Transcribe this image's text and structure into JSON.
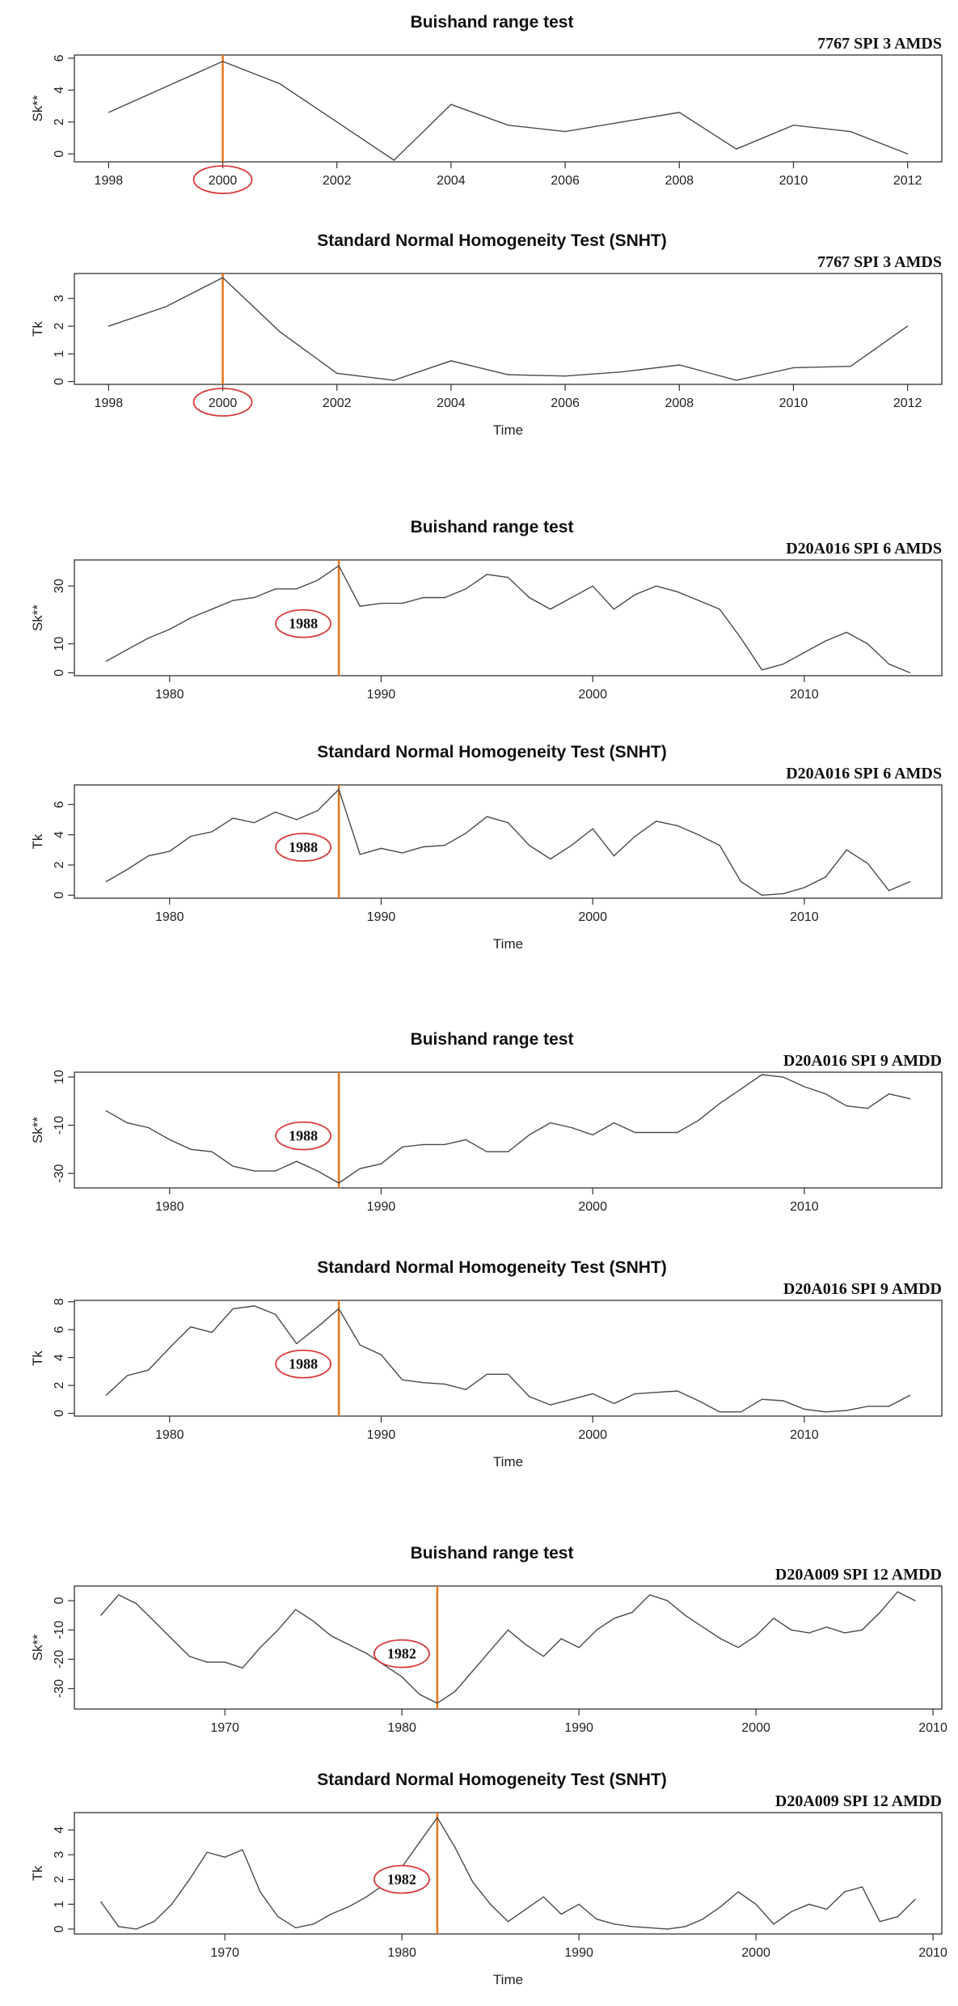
{
  "chart_data": [
    {
      "type": "line",
      "title": "Buishand range test",
      "subtitle": "7767 SPI 3 AMDS",
      "xlabel": "",
      "ylabel": "Sk**",
      "xlim": [
        1997.4,
        2012.6
      ],
      "ylim": [
        -0.5,
        6.2
      ],
      "xticks": [
        1998,
        2000,
        2002,
        2004,
        2006,
        2008,
        2010,
        2012
      ],
      "yticks": [
        0,
        2,
        4,
        6
      ],
      "x": [
        1998,
        1999,
        2000,
        2001,
        2002,
        2003,
        2004,
        2005,
        2006,
        2007,
        2008,
        2009,
        2010,
        2011,
        2012
      ],
      "values": [
        2.6,
        4.2,
        5.8,
        4.4,
        2.0,
        -0.4,
        3.1,
        1.8,
        1.4,
        2.0,
        2.6,
        0.3,
        1.8,
        1.4,
        0.0
      ],
      "change_point": 2000,
      "annotation": "2000",
      "annotation_style": "tick-circle"
    },
    {
      "type": "line",
      "title": "Standard Normal Homogeneity Test (SNHT)",
      "subtitle": "7767 SPI 3 AMDS",
      "xlabel": "Time",
      "ylabel": "Tk",
      "xlim": [
        1997.4,
        2012.6
      ],
      "ylim": [
        -0.1,
        3.9
      ],
      "xticks": [
        1998,
        2000,
        2002,
        2004,
        2006,
        2008,
        2010,
        2012
      ],
      "yticks": [
        0,
        1,
        2,
        3
      ],
      "x": [
        1998,
        1999,
        2000,
        2001,
        2002,
        2003,
        2004,
        2005,
        2006,
        2007,
        2008,
        2009,
        2010,
        2011,
        2012
      ],
      "values": [
        2.0,
        2.7,
        3.75,
        1.8,
        0.3,
        0.05,
        0.75,
        0.25,
        0.2,
        0.35,
        0.6,
        0.05,
        0.5,
        0.55,
        2.0
      ],
      "change_point": 2000,
      "annotation": "2000",
      "annotation_style": "tick-circle"
    },
    {
      "type": "line",
      "title": "Buishand range test",
      "subtitle": "D20A016 SPI 6 AMDS",
      "xlabel": "",
      "ylabel": "Sk**",
      "xlim": [
        1975.5,
        2016.5
      ],
      "ylim": [
        -1,
        39
      ],
      "xticks": [
        1980,
        1990,
        2000,
        2010
      ],
      "yticks": [
        0,
        10,
        30
      ],
      "x": [
        1977,
        1978,
        1979,
        1980,
        1981,
        1982,
        1983,
        1984,
        1985,
        1986,
        1987,
        1988,
        1989,
        1990,
        1991,
        1992,
        1993,
        1994,
        1995,
        1996,
        1997,
        1998,
        1999,
        2000,
        2001,
        2002,
        2003,
        2004,
        2005,
        2006,
        2007,
        2008,
        2009,
        2010,
        2011,
        2012,
        2013,
        2014,
        2015
      ],
      "values": [
        4,
        8,
        12,
        15,
        19,
        22,
        25,
        26,
        29,
        29,
        32,
        37,
        23,
        24,
        24,
        26,
        26,
        29,
        34,
        33,
        26,
        22,
        26,
        30,
        22,
        27,
        30,
        28,
        25,
        22,
        12,
        1,
        3,
        7,
        11,
        14,
        10,
        3,
        0
      ],
      "change_point": 1988,
      "annotation": "1988",
      "annotation_style": "inplot-circle"
    },
    {
      "type": "line",
      "title": "Standard Normal Homogeneity Test (SNHT)",
      "subtitle": "D20A016 SPI 6 AMDS",
      "xlabel": "Time",
      "ylabel": "Tk",
      "xlim": [
        1975.5,
        2016.5
      ],
      "ylim": [
        -0.2,
        7.3
      ],
      "xticks": [
        1980,
        1990,
        2000,
        2010
      ],
      "yticks": [
        0,
        2,
        4,
        6
      ],
      "x": [
        1977,
        1978,
        1979,
        1980,
        1981,
        1982,
        1983,
        1984,
        1985,
        1986,
        1987,
        1988,
        1989,
        1990,
        1991,
        1992,
        1993,
        1994,
        1995,
        1996,
        1997,
        1998,
        1999,
        2000,
        2001,
        2002,
        2003,
        2004,
        2005,
        2006,
        2007,
        2008,
        2009,
        2010,
        2011,
        2012,
        2013,
        2014,
        2015
      ],
      "values": [
        0.9,
        1.7,
        2.6,
        2.9,
        3.9,
        4.2,
        5.1,
        4.8,
        5.5,
        5.0,
        5.6,
        7.0,
        2.7,
        3.1,
        2.8,
        3.2,
        3.3,
        4.1,
        5.2,
        4.8,
        3.3,
        2.4,
        3.3,
        4.4,
        2.6,
        3.9,
        4.9,
        4.6,
        4.0,
        3.3,
        0.9,
        0.0,
        0.1,
        0.5,
        1.2,
        3.0,
        2.1,
        0.3,
        0.9
      ],
      "change_point": 1988,
      "annotation": "1988",
      "annotation_style": "inplot-circle"
    },
    {
      "type": "line",
      "title": "Buishand range test",
      "subtitle": "D20A016 SPI 9 AMDD",
      "xlabel": "",
      "ylabel": "Sk**",
      "xlim": [
        1975.5,
        2016.5
      ],
      "ylim": [
        -36,
        12
      ],
      "xticks": [
        1980,
        1990,
        2000,
        2010
      ],
      "yticks": [
        -30,
        -10,
        10
      ],
      "x": [
        1977,
        1978,
        1979,
        1980,
        1981,
        1982,
        1983,
        1984,
        1985,
        1986,
        1987,
        1988,
        1989,
        1990,
        1991,
        1992,
        1993,
        1994,
        1995,
        1996,
        1997,
        1998,
        1999,
        2000,
        2001,
        2002,
        2003,
        2004,
        2005,
        2006,
        2007,
        2008,
        2009,
        2010,
        2011,
        2012,
        2013,
        2014,
        2015
      ],
      "values": [
        -4,
        -9,
        -11,
        -16,
        -20,
        -21,
        -27,
        -29,
        -29,
        -25,
        -29,
        -34,
        -28,
        -26,
        -19,
        -18,
        -18,
        -16,
        -21,
        -21,
        -14,
        -9,
        -11,
        -14,
        -9,
        -13,
        -13,
        -13,
        -8,
        -1,
        5,
        11,
        10,
        6,
        3,
        -2,
        -3,
        3,
        1
      ],
      "change_point": 1988,
      "annotation": "1988",
      "annotation_style": "inplot-circle"
    },
    {
      "type": "line",
      "title": "Standard Normal Homogeneity Test (SNHT)",
      "subtitle": "D20A016 SPI 9 AMDD",
      "xlabel": "Time",
      "ylabel": "Tk",
      "xlim": [
        1975.5,
        2016.5
      ],
      "ylim": [
        -0.2,
        8.1
      ],
      "xticks": [
        1980,
        1990,
        2000,
        2010
      ],
      "yticks": [
        0,
        2,
        4,
        6,
        8
      ],
      "x": [
        1977,
        1978,
        1979,
        1980,
        1981,
        1982,
        1983,
        1984,
        1985,
        1986,
        1987,
        1988,
        1989,
        1990,
        1991,
        1992,
        1993,
        1994,
        1995,
        1996,
        1997,
        1998,
        1999,
        2000,
        2001,
        2002,
        2003,
        2004,
        2005,
        2006,
        2007,
        2008,
        2009,
        2010,
        2011,
        2012,
        2013,
        2014,
        2015
      ],
      "values": [
        1.3,
        2.7,
        3.1,
        4.7,
        6.2,
        5.8,
        7.5,
        7.7,
        7.1,
        5.0,
        6.2,
        7.5,
        4.9,
        4.2,
        2.4,
        2.2,
        2.1,
        1.7,
        2.8,
        2.8,
        1.2,
        0.6,
        1.0,
        1.4,
        0.7,
        1.4,
        1.5,
        1.6,
        0.9,
        0.1,
        0.1,
        1.0,
        0.9,
        0.3,
        0.1,
        0.2,
        0.5,
        0.5,
        1.3
      ],
      "change_point": 1988,
      "annotation": "1988",
      "annotation_style": "inplot-circle"
    },
    {
      "type": "line",
      "title": "Buishand range test",
      "subtitle": "D20A009 SPI 12 AMDD",
      "xlabel": "",
      "ylabel": "Sk**",
      "xlim": [
        1961.5,
        2010.5
      ],
      "ylim": [
        -37,
        5
      ],
      "xticks": [
        1970,
        1980,
        1990,
        2000,
        2010
      ],
      "yticks": [
        -30,
        -20,
        -10,
        0
      ],
      "x": [
        1963,
        1964,
        1965,
        1966,
        1967,
        1968,
        1969,
        1970,
        1971,
        1972,
        1973,
        1974,
        1975,
        1976,
        1977,
        1978,
        1979,
        1980,
        1981,
        1982,
        1983,
        1984,
        1985,
        1986,
        1987,
        1988,
        1989,
        1990,
        1991,
        1992,
        1993,
        1994,
        1995,
        1996,
        1997,
        1998,
        1999,
        2000,
        2001,
        2002,
        2003,
        2004,
        2005,
        2006,
        2007,
        2008,
        2009
      ],
      "values": [
        -5,
        2,
        -1,
        -7,
        -13,
        -19,
        -21,
        -21,
        -23,
        -16,
        -10,
        -3,
        -7,
        -12,
        -15,
        -18,
        -22,
        -26,
        -32,
        -35,
        -31,
        -24,
        -17,
        -10,
        -15,
        -19,
        -13,
        -16,
        -10,
        -6,
        -4,
        2,
        0,
        -5,
        -9,
        -13,
        -16,
        -12,
        -6,
        -10,
        -11,
        -9,
        -11,
        -10,
        -4,
        3,
        0
      ],
      "change_point": 1982,
      "annotation": "1982",
      "annotation_style": "inplot-circle"
    },
    {
      "type": "line",
      "title": "Standard Normal Homogeneity Test (SNHT)",
      "subtitle": "D20A009 SPI 12 AMDD",
      "xlabel": "Time",
      "ylabel": "Tk",
      "xlim": [
        1961.5,
        2010.5
      ],
      "ylim": [
        -0.2,
        4.7
      ],
      "xticks": [
        1970,
        1980,
        1990,
        2000,
        2010
      ],
      "yticks": [
        0,
        1,
        2,
        3,
        4
      ],
      "x": [
        1963,
        1964,
        1965,
        1966,
        1967,
        1968,
        1969,
        1970,
        1971,
        1972,
        1973,
        1974,
        1975,
        1976,
        1977,
        1978,
        1979,
        1980,
        1981,
        1982,
        1983,
        1984,
        1985,
        1986,
        1987,
        1988,
        1989,
        1990,
        1991,
        1992,
        1993,
        1994,
        1995,
        1996,
        1997,
        1998,
        1999,
        2000,
        2001,
        2002,
        2003,
        2004,
        2005,
        2006,
        2007,
        2008,
        2009
      ],
      "values": [
        1.1,
        0.1,
        0.0,
        0.3,
        1.0,
        2.0,
        3.1,
        2.9,
        3.2,
        1.5,
        0.5,
        0.05,
        0.2,
        0.6,
        0.9,
        1.3,
        1.8,
        2.5,
        3.5,
        4.5,
        3.3,
        1.9,
        1.0,
        0.3,
        0.8,
        1.3,
        0.6,
        1.0,
        0.4,
        0.2,
        0.1,
        0.05,
        0.0,
        0.1,
        0.4,
        0.9,
        1.5,
        1.0,
        0.2,
        0.7,
        1.0,
        0.8,
        1.5,
        1.7,
        0.3,
        0.5,
        1.2
      ],
      "change_point": 1982,
      "annotation": "1982",
      "annotation_style": "inplot-circle"
    }
  ],
  "colors": {
    "series_line": "#4a4a4a",
    "change_point_line": "#e8761a",
    "annotation_ellipse": "#d93a3a",
    "axis": "#333333"
  }
}
